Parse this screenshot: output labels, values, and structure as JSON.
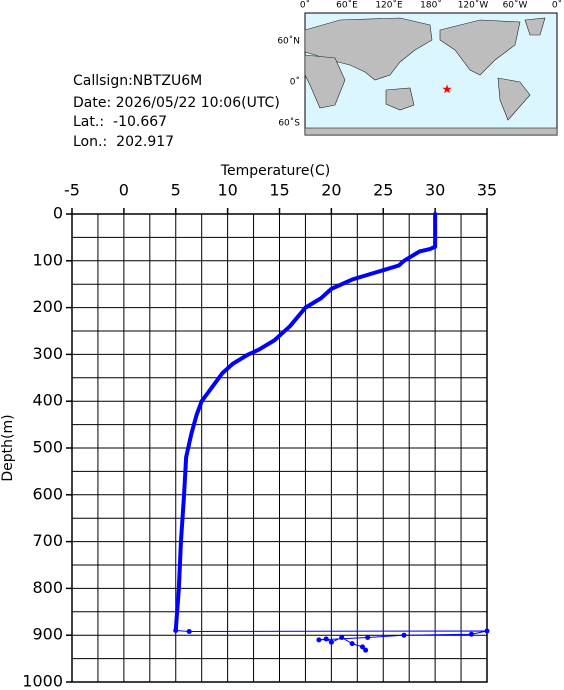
{
  "info": {
    "callsign": "Callsign:NBTZU6M",
    "date": "Date:  2026/05/22 10:06(UTC)",
    "lat_label": "Lat.:",
    "lat": -10.667,
    "lon_label": "Lon.:",
    "lon": 202.917
  },
  "map": {
    "lon_labels": [
      "0˚",
      "60˚E",
      "120˚E",
      "180˚",
      "120˚W",
      "60˚W",
      "0˚"
    ],
    "lat_labels": [
      "60˚N",
      "0˚",
      "60˚S"
    ],
    "marker_color": "#ff0000"
  },
  "chart_data": {
    "type": "line",
    "x_label": "Temperature(C)",
    "y_label": "Depth(m)",
    "xlim": [
      -5,
      35
    ],
    "xticks": [
      -5,
      0,
      5,
      10,
      15,
      20,
      25,
      30,
      35
    ],
    "ylim": [
      0,
      1000
    ],
    "yticks": [
      0,
      100,
      200,
      300,
      400,
      500,
      600,
      700,
      800,
      900,
      1000
    ],
    "y_inverted": true,
    "grid": true,
    "x_grid_step": 2.5,
    "y_grid_step": 50,
    "series": [
      {
        "color": "#0000ff",
        "line_width": 4,
        "x": [
          30,
          30,
          29.5,
          28.5,
          27,
          26.5,
          25,
          22,
          20,
          19,
          17.5,
          16,
          14.5,
          13,
          12,
          10.5,
          9.5,
          8.5,
          7.5,
          7,
          6.5,
          6,
          5.8,
          5.5,
          5.3,
          5
        ],
        "values": [
          0,
          70,
          75,
          80,
          100,
          110,
          120,
          140,
          160,
          180,
          200,
          240,
          270,
          290,
          300,
          320,
          340,
          370,
          400,
          430,
          470,
          520,
          600,
          700,
          800,
          890
        ]
      },
      {
        "color": "#0000ff",
        "line_width": 1,
        "x": [
          5,
          6.3,
          35,
          33.5,
          27,
          23.5,
          18.8,
          19.5,
          20,
          21,
          22,
          23,
          23.3
        ],
        "values": [
          890,
          892,
          891,
          898,
          900,
          905,
          910,
          908,
          915,
          905,
          918,
          925,
          932
        ]
      }
    ]
  }
}
